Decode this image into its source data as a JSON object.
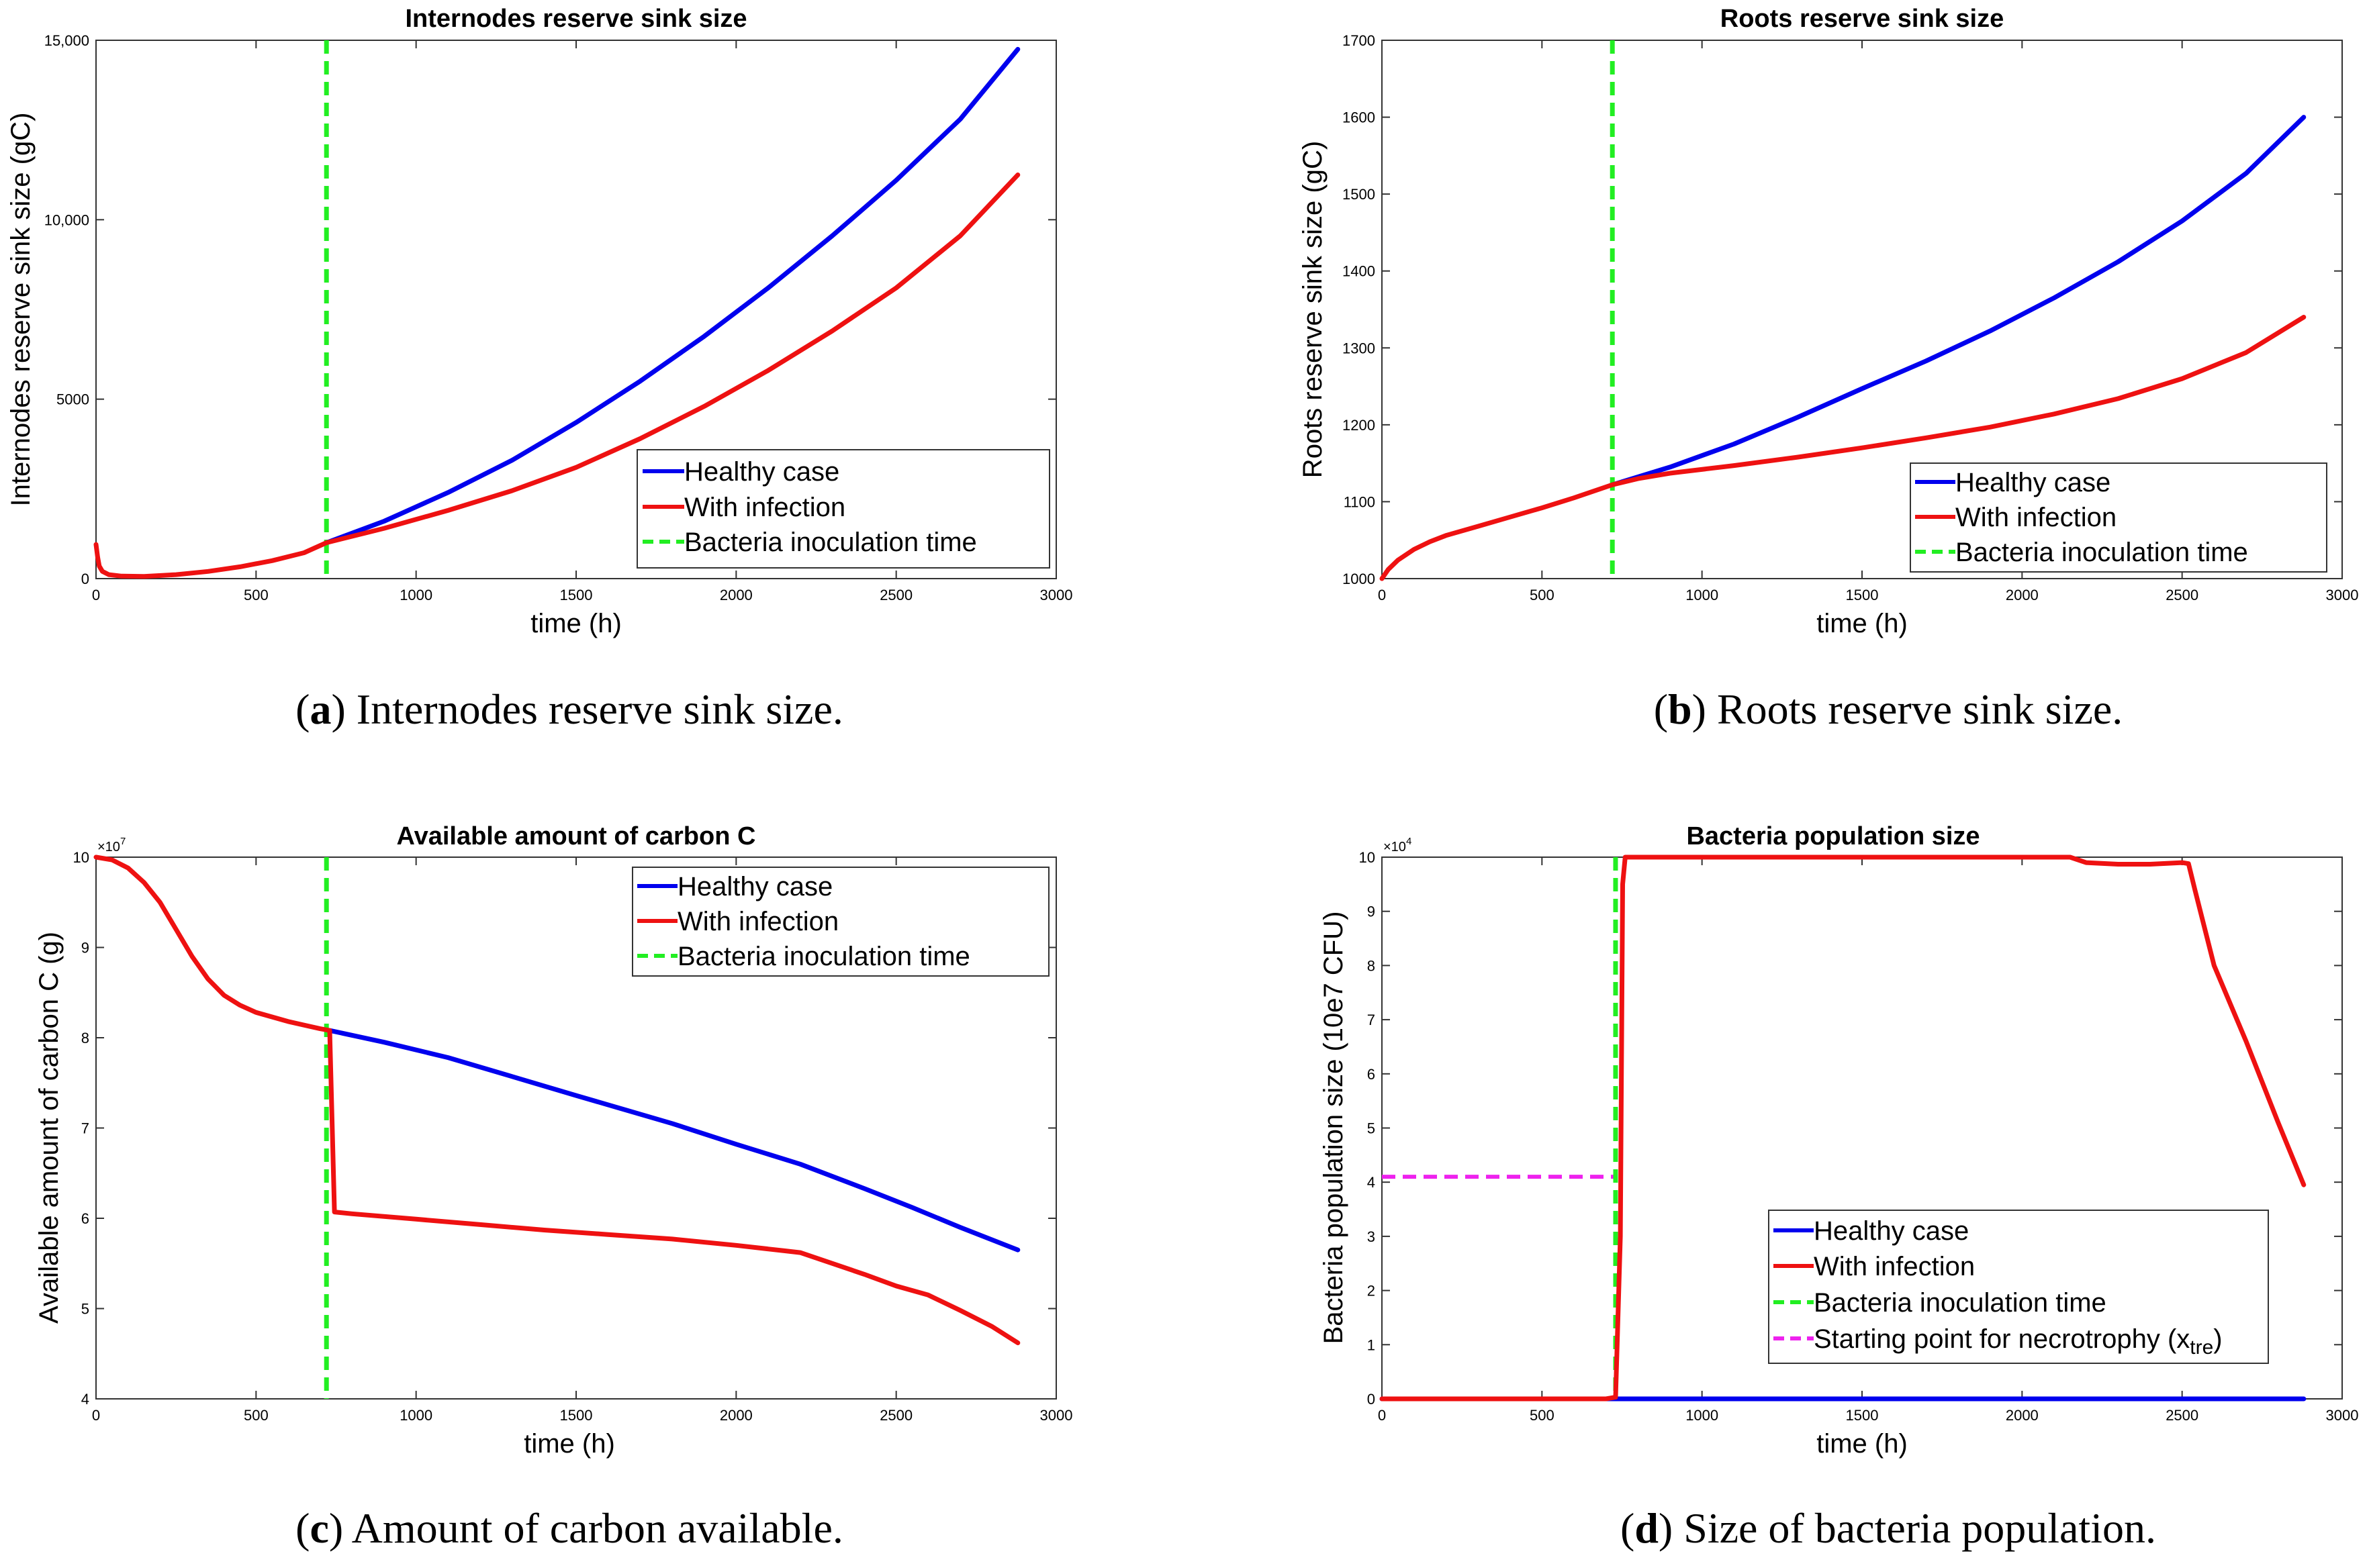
{
  "colors": {
    "healthy": "#0000ee",
    "infection": "#ee1111",
    "inoculation": "#22ee22",
    "necrotrophy": "#ee22ee"
  },
  "chart_data": [
    {
      "id": "a",
      "type": "line",
      "title": "Internodes reserve sink size",
      "xlabel": "time (h)",
      "ylabel": "Internodes reserve sink size (gC)",
      "xlim": [
        0,
        3000
      ],
      "ylim": [
        0,
        15000
      ],
      "xticks": [
        0,
        500,
        1000,
        1500,
        2000,
        2500,
        3000
      ],
      "xtick_labels": [
        "0",
        "500",
        "1000",
        "1500",
        "2000",
        "2500",
        "3000"
      ],
      "yticks": [
        0,
        5000,
        10000,
        15000
      ],
      "ytick_labels": [
        "0",
        "5000",
        "10,000",
        "15,000"
      ],
      "exponent": "",
      "inoculation_x": 720,
      "series": [
        {
          "name": "Healthy case",
          "key": "healthy",
          "x": [
            720,
            900,
            1100,
            1300,
            1500,
            1700,
            1900,
            2100,
            2300,
            2500,
            2700,
            2880
          ],
          "y": [
            1000,
            1600,
            2400,
            3300,
            4350,
            5500,
            6750,
            8100,
            9550,
            11100,
            12800,
            14750
          ]
        },
        {
          "name": "With infection",
          "key": "infection",
          "x": [
            0,
            5,
            10,
            20,
            40,
            80,
            150,
            250,
            350,
            450,
            550,
            650,
            720,
            900,
            1100,
            1300,
            1500,
            1700,
            1900,
            2100,
            2300,
            2500,
            2700,
            2880
          ],
          "y": [
            950,
            600,
            350,
            200,
            110,
            70,
            60,
            110,
            200,
            330,
            500,
            720,
            1000,
            1400,
            1900,
            2450,
            3100,
            3900,
            4800,
            5800,
            6900,
            8100,
            9550,
            11250
          ]
        }
      ],
      "legend": {
        "position": "center-right",
        "entries": [
          "Healthy case",
          "With infection",
          "Bacteria inoculation time"
        ]
      },
      "caption_label": "a",
      "caption_text": " Internodes reserve sink size."
    },
    {
      "id": "b",
      "type": "line",
      "title": "Roots reserve sink size",
      "xlabel": "time (h)",
      "ylabel": "Roots reserve sink size (gC)",
      "xlim": [
        0,
        3000
      ],
      "ylim": [
        1000,
        1700
      ],
      "xticks": [
        0,
        500,
        1000,
        1500,
        2000,
        2500,
        3000
      ],
      "xtick_labels": [
        "0",
        "500",
        "1000",
        "1500",
        "2000",
        "2500",
        "3000"
      ],
      "yticks": [
        1000,
        1100,
        1200,
        1300,
        1400,
        1500,
        1600,
        1700
      ],
      "ytick_labels": [
        "1000",
        "1100",
        "1200",
        "1300",
        "1400",
        "1500",
        "1600",
        "1700"
      ],
      "exponent": "",
      "inoculation_x": 720,
      "series": [
        {
          "name": "Healthy case",
          "key": "healthy",
          "x": [
            720,
            900,
            1100,
            1300,
            1500,
            1700,
            1900,
            2100,
            2300,
            2500,
            2700,
            2880
          ],
          "y": [
            1122,
            1145,
            1175,
            1210,
            1247,
            1283,
            1322,
            1365,
            1412,
            1465,
            1527,
            1600
          ]
        },
        {
          "name": "With infection",
          "key": "infection",
          "x": [
            0,
            20,
            50,
            100,
            150,
            200,
            300,
            400,
            500,
            600,
            720,
            800,
            900,
            1100,
            1300,
            1500,
            1700,
            1900,
            2100,
            2300,
            2500,
            2700,
            2880
          ],
          "y": [
            1000,
            1012,
            1024,
            1038,
            1048,
            1056,
            1068,
            1080,
            1092,
            1105,
            1122,
            1130,
            1137,
            1147,
            1158,
            1170,
            1183,
            1197,
            1214,
            1234,
            1260,
            1294,
            1340
          ]
        }
      ],
      "legend": {
        "position": "bottom-right",
        "entries": [
          "Healthy case",
          "With infection",
          "Bacteria inoculation time"
        ]
      },
      "caption_label": "b",
      "caption_text": " Roots reserve sink size."
    },
    {
      "id": "c",
      "type": "line",
      "title": "Available amount of carbon C",
      "xlabel": "time (h)",
      "ylabel": "Available amount of carbon C (g)",
      "xlim": [
        0,
        3000
      ],
      "ylim": [
        4,
        10
      ],
      "xticks": [
        0,
        500,
        1000,
        1500,
        2000,
        2500,
        3000
      ],
      "xtick_labels": [
        "0",
        "500",
        "1000",
        "1500",
        "2000",
        "2500",
        "3000"
      ],
      "yticks": [
        4,
        5,
        6,
        7,
        8,
        9,
        10
      ],
      "ytick_labels": [
        "4",
        "5",
        "6",
        "7",
        "8",
        "9",
        "10"
      ],
      "exponent": "×10",
      "exponent_power": "7",
      "inoculation_x": 720,
      "series": [
        {
          "name": "Healthy case",
          "key": "healthy",
          "x": [
            730,
            900,
            1100,
            1300,
            1500,
            1800,
            2000,
            2200,
            2400,
            2550,
            2700,
            2880
          ],
          "y": [
            8.08,
            7.95,
            7.78,
            7.57,
            7.36,
            7.05,
            6.82,
            6.6,
            6.33,
            6.12,
            5.9,
            5.65
          ]
        },
        {
          "name": "With infection",
          "key": "infection",
          "x": [
            0,
            50,
            100,
            150,
            200,
            250,
            300,
            350,
            400,
            450,
            500,
            600,
            700,
            730,
            745,
            800,
            1000,
            1200,
            1400,
            1600,
            1800,
            2000,
            2150,
            2200,
            2400,
            2500,
            2600,
            2700,
            2800,
            2880
          ],
          "y": [
            10,
            9.97,
            9.88,
            9.72,
            9.5,
            9.2,
            8.9,
            8.65,
            8.47,
            8.36,
            8.28,
            8.18,
            8.1,
            8.08,
            6.07,
            6.05,
            5.99,
            5.93,
            5.87,
            5.82,
            5.77,
            5.7,
            5.64,
            5.62,
            5.38,
            5.25,
            5.15,
            4.98,
            4.8,
            4.62
          ]
        }
      ],
      "legend": {
        "position": "top-right",
        "entries": [
          "Healthy case",
          "With infection",
          "Bacteria inoculation time"
        ]
      },
      "caption_label": "c",
      "caption_text": " Amount of carbon available."
    },
    {
      "id": "d",
      "type": "line",
      "title": "Bacteria population size",
      "xlabel": "time (h)",
      "ylabel": "Bacteria population size (10e7 CFU)",
      "xlim": [
        0,
        3000
      ],
      "ylim": [
        0,
        10
      ],
      "xticks": [
        0,
        500,
        1000,
        1500,
        2000,
        2500,
        3000
      ],
      "xtick_labels": [
        "0",
        "500",
        "1000",
        "1500",
        "2000",
        "2500",
        "3000"
      ],
      "yticks": [
        0,
        1,
        2,
        3,
        4,
        5,
        6,
        7,
        8,
        9,
        10
      ],
      "ytick_labels": [
        "0",
        "1",
        "2",
        "3",
        "4",
        "5",
        "6",
        "7",
        "8",
        "9",
        "10"
      ],
      "exponent": "×10",
      "exponent_power": "4",
      "inoculation_x": 730,
      "threshold": {
        "name": "Starting point for necrotrophy",
        "sub": "tre",
        "y": 4.1,
        "x_end": 730
      },
      "series": [
        {
          "name": "Healthy case",
          "key": "healthy",
          "x": [
            0,
            2880
          ],
          "y": [
            0,
            0
          ]
        },
        {
          "name": "With infection",
          "key": "infection",
          "x": [
            0,
            700,
            730,
            745,
            752,
            760,
            800,
            1000,
            1500,
            2000,
            2150,
            2200,
            2300,
            2400,
            2500,
            2520,
            2540,
            2600,
            2700,
            2800,
            2880
          ],
          "y": [
            0,
            0,
            0.03,
            3,
            9.5,
            10,
            10,
            10,
            10,
            10,
            10,
            9.9,
            9.87,
            9.87,
            9.9,
            9.88,
            9.4,
            8.0,
            6.6,
            5.1,
            3.95
          ]
        }
      ],
      "legend": {
        "position": "bottom-right",
        "entries": [
          "Healthy case",
          "With infection",
          "Bacteria inoculation time",
          "Starting point for necrotrophy (x",
          "tre",
          ")"
        ]
      },
      "caption_label": "d",
      "caption_text": " Size of bacteria population."
    }
  ]
}
